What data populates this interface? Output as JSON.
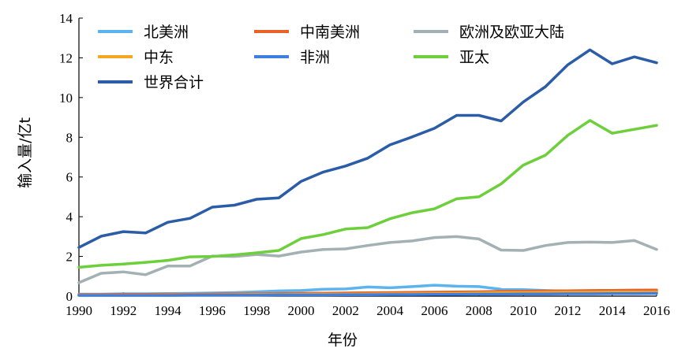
{
  "chart_data": {
    "type": "line",
    "xlabel": "年份",
    "ylabel": "输入量/亿t",
    "xlim": [
      1990,
      2016
    ],
    "ylim": [
      0,
      14
    ],
    "xticks": [
      1990,
      1992,
      1994,
      1996,
      1998,
      2000,
      2002,
      2004,
      2006,
      2008,
      2010,
      2012,
      2014,
      2016
    ],
    "xtick_labels": [
      "1990",
      "1992",
      "1994",
      "1996",
      "1998",
      "2000",
      "2002",
      "2004",
      "2006",
      "2008",
      "2010",
      "2012",
      "2014",
      "2016"
    ],
    "yticks": [
      0,
      2,
      4,
      6,
      8,
      10,
      12,
      14
    ],
    "ytick_labels": [
      "0",
      "2",
      "4",
      "6",
      "8",
      "10",
      "12",
      "14"
    ],
    "grid": false,
    "legend_position": "top-left",
    "x": [
      1990,
      1991,
      1992,
      1993,
      1994,
      1995,
      1996,
      1997,
      1998,
      1999,
      2000,
      2001,
      2002,
      2003,
      2004,
      2005,
      2006,
      2007,
      2008,
      2009,
      2010,
      2011,
      2012,
      2013,
      2014,
      2015,
      2016
    ],
    "series": [
      {
        "name": "北美洲",
        "color": "#5bb4ef",
        "values": [
          0.1,
          0.1,
          0.12,
          0.12,
          0.13,
          0.14,
          0.16,
          0.18,
          0.22,
          0.26,
          0.28,
          0.35,
          0.36,
          0.46,
          0.42,
          0.48,
          0.55,
          0.5,
          0.48,
          0.35,
          0.33,
          0.28,
          0.25,
          0.22,
          0.2,
          0.22,
          0.22
        ]
      },
      {
        "name": "中南美洲",
        "color": "#e8622a",
        "values": [
          0.08,
          0.08,
          0.09,
          0.09,
          0.1,
          0.1,
          0.11,
          0.12,
          0.12,
          0.13,
          0.14,
          0.15,
          0.16,
          0.17,
          0.18,
          0.19,
          0.2,
          0.21,
          0.22,
          0.24,
          0.25,
          0.26,
          0.27,
          0.28,
          0.29,
          0.3,
          0.31
        ]
      },
      {
        "name": "欧洲及欧亚大陆",
        "color": "#a3b0b4",
        "values": [
          0.68,
          1.15,
          1.22,
          1.08,
          1.52,
          1.52,
          2.02,
          2.0,
          2.1,
          2.02,
          2.22,
          2.35,
          2.38,
          2.55,
          2.7,
          2.78,
          2.95,
          3.0,
          2.88,
          2.32,
          2.3,
          2.55,
          2.7,
          2.72,
          2.7,
          2.8,
          2.35
        ]
      },
      {
        "name": "中东",
        "color": "#f5a623",
        "values": [
          0.05,
          0.05,
          0.05,
          0.05,
          0.06,
          0.06,
          0.06,
          0.07,
          0.08,
          0.08,
          0.09,
          0.1,
          0.1,
          0.11,
          0.12,
          0.12,
          0.13,
          0.14,
          0.16,
          0.18,
          0.18,
          0.19,
          0.2,
          0.2,
          0.21,
          0.21,
          0.21
        ]
      },
      {
        "name": "非洲",
        "color": "#3d7fe0",
        "values": [
          0.04,
          0.04,
          0.04,
          0.04,
          0.04,
          0.05,
          0.05,
          0.05,
          0.05,
          0.06,
          0.06,
          0.06,
          0.07,
          0.07,
          0.08,
          0.08,
          0.09,
          0.09,
          0.1,
          0.1,
          0.11,
          0.11,
          0.12,
          0.12,
          0.13,
          0.13,
          0.14
        ]
      },
      {
        "name": "亚太",
        "color": "#6ccf3b",
        "values": [
          1.45,
          1.55,
          1.62,
          1.7,
          1.8,
          1.98,
          2.0,
          2.08,
          2.18,
          2.3,
          2.9,
          3.1,
          3.38,
          3.45,
          3.9,
          4.2,
          4.4,
          4.9,
          5.0,
          5.65,
          6.6,
          7.1,
          8.1,
          8.85,
          8.2,
          8.4,
          8.6
        ]
      },
      {
        "name": "世界合计",
        "color": "#2b5ca8",
        "values": [
          2.45,
          3.02,
          3.25,
          3.18,
          3.72,
          3.92,
          4.48,
          4.58,
          4.88,
          4.95,
          5.78,
          6.25,
          6.55,
          6.95,
          7.62,
          8.02,
          8.45,
          9.1,
          9.1,
          8.82,
          9.78,
          10.55,
          11.65,
          12.4,
          11.7,
          12.05,
          11.75
        ]
      }
    ]
  }
}
